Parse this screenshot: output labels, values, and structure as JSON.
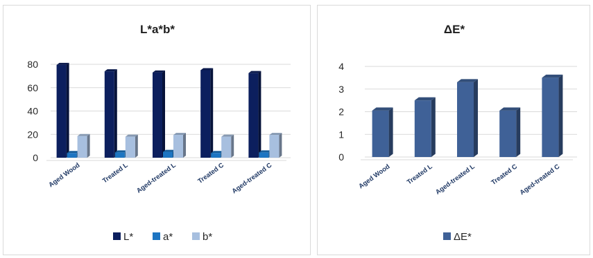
{
  "chart_data": [
    {
      "type": "bar",
      "title": "L*a*b*",
      "categories": [
        "Aged Wood",
        "Treated L",
        "Aged-treated L",
        "Treated C",
        "Aged-treated C"
      ],
      "series": [
        {
          "name": "L*",
          "values": [
            79.5,
            74,
            73,
            75,
            72.5
          ],
          "color": "#0c1f5e"
        },
        {
          "name": "a*",
          "values": [
            4,
            4.5,
            5,
            4,
            4.5
          ],
          "color": "#1d75c2"
        },
        {
          "name": "b*",
          "values": [
            18.5,
            18,
            19.5,
            18,
            19.5
          ],
          "color": "#a7bfdf"
        }
      ],
      "ylim": [
        0,
        80
      ],
      "yticks": [
        "0",
        "20",
        "40",
        "60",
        "80"
      ],
      "grid": true,
      "legend": "bottom",
      "xlabel": "",
      "ylabel": ""
    },
    {
      "type": "bar",
      "title": "ΔE*",
      "categories": [
        "Aged Wood",
        "Treated L",
        "Aged-treated L",
        "Treated C",
        "Aged-treated C"
      ],
      "series": [
        {
          "name": "ΔE*",
          "values": [
            2.05,
            2.5,
            3.3,
            2.05,
            3.5
          ],
          "color": "#3f6197"
        }
      ],
      "ylim": [
        0,
        4
      ],
      "yticks": [
        "0",
        "1",
        "2",
        "3",
        "4"
      ],
      "grid": true,
      "legend": "bottom",
      "xlabel": "",
      "ylabel": ""
    }
  ]
}
